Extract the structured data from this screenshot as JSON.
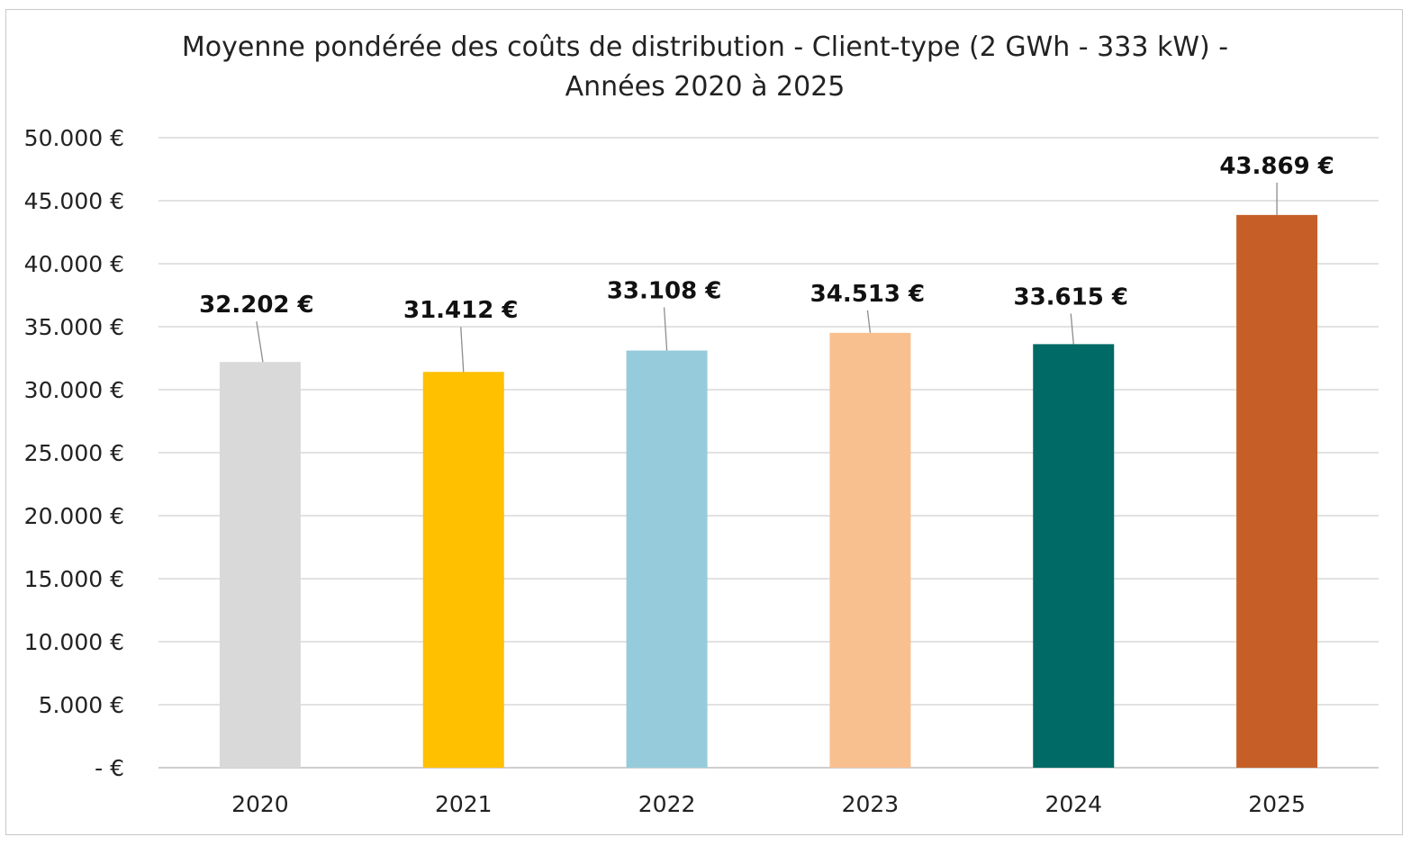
{
  "chart_data": {
    "type": "bar",
    "title_lines": [
      "Moyenne pondérée des coûts de distribution - Client-type (2 GWh - 333 kW) -",
      "Années 2020 à 2025"
    ],
    "categories": [
      "2020",
      "2021",
      "2022",
      "2023",
      "2024",
      "2025"
    ],
    "values": [
      32202,
      31412,
      33108,
      34513,
      33615,
      43869
    ],
    "value_labels": [
      "32.202 €",
      "31.412 €",
      "33.108 €",
      "34.513 €",
      "33.615 €",
      "43.869 €"
    ],
    "colors": [
      "#d9d9d9",
      "#ffc000",
      "#96cbdc",
      "#f9c08f",
      "#006a66",
      "#c55f27"
    ],
    "ylim": [
      0,
      50000
    ],
    "yticks": [
      0,
      5000,
      10000,
      15000,
      20000,
      25000,
      30000,
      35000,
      40000,
      45000,
      50000
    ],
    "ytick_labels": [
      "-   €",
      "5.000 €",
      "10.000 €",
      "15.000 €",
      "20.000 €",
      "25.000 €",
      "30.000 €",
      "35.000 €",
      "40.000 €",
      "45.000 €",
      "50.000 €"
    ],
    "grid": true,
    "legend": "none"
  }
}
